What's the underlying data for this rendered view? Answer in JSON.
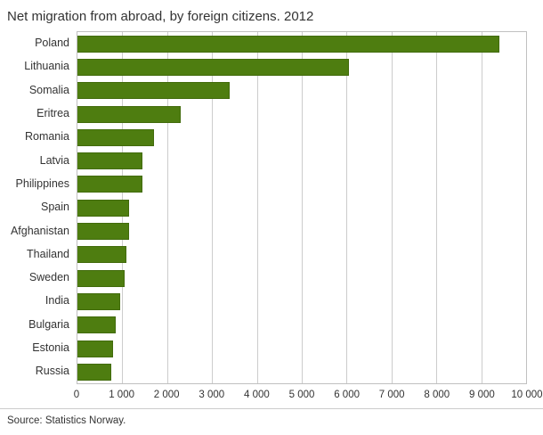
{
  "title": "Net migration from abroad, by foreign citizens. 2012",
  "source": "Source: Statistics Norway.",
  "chart_data": {
    "type": "bar",
    "orientation": "horizontal",
    "title": "Net migration from abroad, by foreign citizens. 2012",
    "xlabel": "",
    "ylabel": "",
    "xlim": [
      0,
      10000
    ],
    "grid": true,
    "bar_color": "#4e7d10",
    "categories": [
      "Poland",
      "Lithuania",
      "Somalia",
      "Eritrea",
      "Romania",
      "Latvia",
      "Philippines",
      "Spain",
      "Afghanistan",
      "Thailand",
      "Sweden",
      "India",
      "Bulgaria",
      "Estonia",
      "Russia"
    ],
    "values": [
      9400,
      6050,
      3400,
      2300,
      1700,
      1450,
      1450,
      1150,
      1150,
      1100,
      1050,
      950,
      850,
      800,
      750
    ],
    "x_tick_values": [
      0,
      1000,
      2000,
      3000,
      4000,
      5000,
      6000,
      7000,
      8000,
      9000,
      10000
    ],
    "x_tick_labels": [
      "0",
      "1 000",
      "2 000",
      "3 000",
      "4 000",
      "5 000",
      "6 000",
      "7 000",
      "8 000",
      "9 000",
      "10 000"
    ]
  }
}
